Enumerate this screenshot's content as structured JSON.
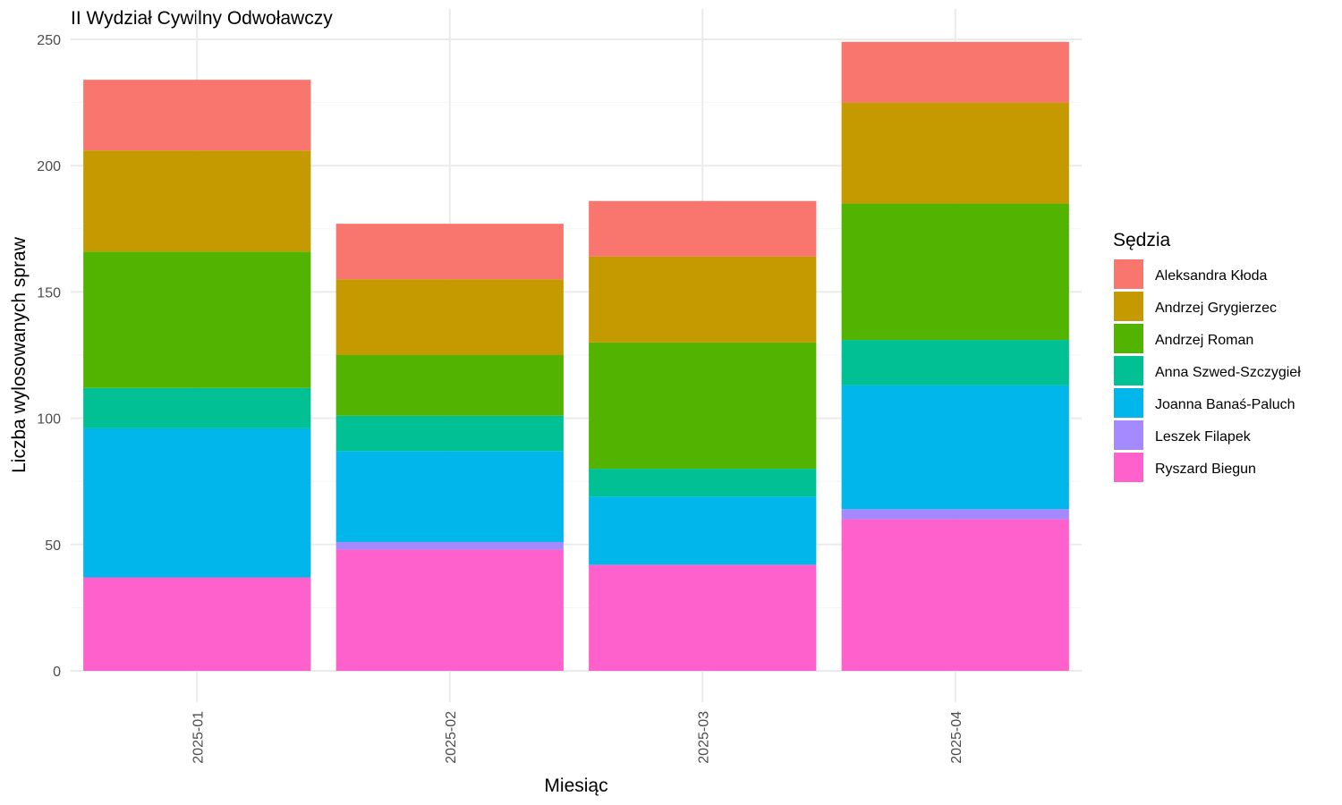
{
  "chart_data": {
    "type": "bar",
    "stacked": true,
    "title": "II Wydział Cywilny Odwoławczy",
    "xlabel": "Miesiąc",
    "ylabel": "Liczba wylosowanych spraw",
    "ylim": [
      0,
      260
    ],
    "yticks": [
      0,
      50,
      100,
      150,
      200,
      250
    ],
    "grid": true,
    "legend_title": "Sędzia",
    "legend_position": "right",
    "categories": [
      "2025-01",
      "2025-02",
      "2025-03",
      "2025-04"
    ],
    "series": [
      {
        "name": "Ryszard Biegun",
        "color": "#FF61CC",
        "values": [
          37,
          48,
          42,
          60
        ]
      },
      {
        "name": "Leszek Filapek",
        "color": "#A58AFF",
        "values": [
          0,
          3,
          0,
          4
        ]
      },
      {
        "name": "Joanna Banaś-Paluch",
        "color": "#00B6EB",
        "values": [
          59,
          36,
          27,
          49
        ]
      },
      {
        "name": "Anna Szwed-Szczygieł",
        "color": "#00C094",
        "values": [
          16,
          14,
          11,
          18
        ]
      },
      {
        "name": "Andrzej Roman",
        "color": "#53B400",
        "values": [
          54,
          24,
          50,
          54
        ]
      },
      {
        "name": "Andrzej Grygierzec",
        "color": "#C49A00",
        "values": [
          40,
          30,
          34,
          40
        ]
      },
      {
        "name": "Aleksandra Kłoda",
        "color": "#F8766D",
        "values": [
          28,
          22,
          22,
          24
        ]
      }
    ],
    "legend_order": [
      "Aleksandra Kłoda",
      "Andrzej Grygierzec",
      "Andrzej Roman",
      "Anna Szwed-Szczygieł",
      "Joanna Banaś-Paluch",
      "Leszek Filapek",
      "Ryszard Biegun"
    ]
  }
}
